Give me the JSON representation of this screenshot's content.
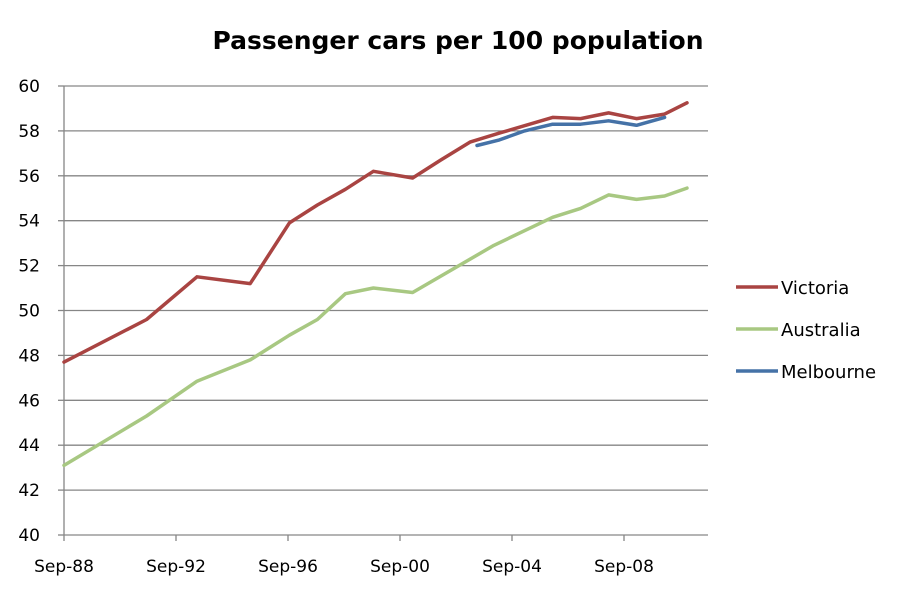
{
  "chart_data": {
    "type": "line",
    "title": "Passenger cars per 100 population",
    "xlabel": "",
    "ylabel": "",
    "ylim": [
      40,
      60
    ],
    "yticks": [
      40,
      42,
      44,
      46,
      48,
      50,
      52,
      54,
      56,
      58,
      60
    ],
    "ytick_labels": [
      "40",
      "42",
      "44",
      "46",
      "48",
      "50",
      "52",
      "54",
      "56",
      "58",
      "60"
    ],
    "xlim": [
      1988.75,
      2011.75
    ],
    "xticks": [
      1988.75,
      1992.75,
      1996.75,
      2000.75,
      2004.75,
      2008.75
    ],
    "xtick_labels": [
      "Sep-88",
      "Sep-92",
      "Sep-96",
      "Sep-00",
      "Sep-04",
      "Sep-08"
    ],
    "grid": true,
    "legend_position": "right",
    "series": [
      {
        "name": "Victoria",
        "color": "#A94442",
        "x": [
          1988.75,
          1991.7,
          1993.5,
          1995.4,
          1996.8,
          1997.8,
          1998.8,
          1999.8,
          2001.2,
          2002.2,
          2003.25,
          2004.3,
          2006.2,
          2007.2,
          2008.2,
          2009.2,
          2010.2,
          2011.0
        ],
        "values": [
          47.7,
          49.6,
          51.5,
          51.2,
          53.9,
          54.7,
          55.4,
          56.2,
          55.9,
          56.7,
          57.5,
          57.9,
          58.6,
          58.55,
          58.8,
          58.55,
          58.75,
          59.25
        ]
      },
      {
        "name": "Australia",
        "color": "#A8C882",
        "x": [
          1988.75,
          1991.7,
          1993.5,
          1995.4,
          1996.8,
          1997.8,
          1998.8,
          1999.8,
          2001.2,
          2004.1,
          2006.2,
          2007.2,
          2008.2,
          2009.2,
          2010.2,
          2011.0
        ],
        "values": [
          43.1,
          45.3,
          46.85,
          47.8,
          48.9,
          49.6,
          50.75,
          51.0,
          50.8,
          52.9,
          54.15,
          54.55,
          55.15,
          54.95,
          55.1,
          55.45
        ]
      },
      {
        "name": "Melbourne",
        "color": "#4572A7",
        "x": [
          2003.5,
          2004.3,
          2005.2,
          2006.2,
          2007.2,
          2008.2,
          2009.2,
          2010.2
        ],
        "values": [
          57.35,
          57.6,
          58.0,
          58.3,
          58.3,
          58.45,
          58.25,
          58.6
        ]
      }
    ]
  }
}
